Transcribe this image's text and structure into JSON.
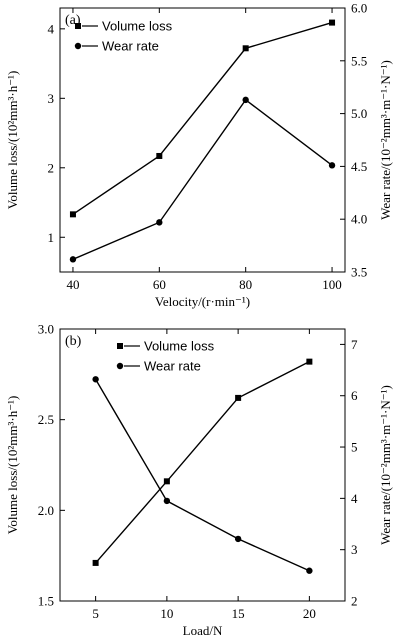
{
  "chart_data": [
    {
      "type": "line",
      "panel_label": "(a)",
      "xlabel": "Velocity/(r·min⁻¹)",
      "ylabel_left": "Volume loss/(10²mm³·h⁻¹)",
      "ylabel_right": "Wear rate/(10⁻²mm³·m⁻¹·N⁻¹)",
      "x": [
        40,
        60,
        80,
        100
      ],
      "xticks": [
        "40",
        "60",
        "80",
        "100"
      ],
      "xlim": [
        37,
        103
      ],
      "ylim_left": [
        0.5,
        4.3
      ],
      "yticks_left": [
        "1",
        "2",
        "3",
        "4"
      ],
      "ylim_right": [
        3.5,
        6.0
      ],
      "yticks_right": [
        "3.5",
        "4.0",
        "4.5",
        "5.0",
        "5.5",
        "6.0"
      ],
      "legend_position": "top-left",
      "series": [
        {
          "name": "Volume loss",
          "marker": "square",
          "axis": "left",
          "values": [
            1.33,
            2.17,
            3.72,
            4.09
          ]
        },
        {
          "name": "Wear rate",
          "marker": "circle",
          "axis": "right",
          "values": [
            3.62,
            3.97,
            5.13,
            4.51
          ]
        }
      ]
    },
    {
      "type": "line",
      "panel_label": "(b)",
      "xlabel": "Load/N",
      "ylabel_left": "Volume loss/(10²mm³·h⁻¹)",
      "ylabel_right": "Wear rate/(10⁻²mm³·m⁻¹·N⁻¹)",
      "x": [
        5,
        10,
        15,
        20
      ],
      "xticks": [
        "5",
        "10",
        "15",
        "20"
      ],
      "xlim": [
        2.5,
        22.5
      ],
      "ylim_left": [
        1.5,
        3.0
      ],
      "yticks_left": [
        "1.5",
        "2.0",
        "2.5",
        "3.0"
      ],
      "ylim_right": [
        2,
        7.3
      ],
      "yticks_right": [
        "2",
        "3",
        "4",
        "5",
        "6",
        "7"
      ],
      "legend_position": "top-center",
      "series": [
        {
          "name": "Volume loss",
          "marker": "square",
          "axis": "left",
          "values": [
            1.71,
            2.16,
            2.62,
            2.82
          ]
        },
        {
          "name": "Wear rate",
          "marker": "circle",
          "axis": "right",
          "values": [
            6.32,
            3.95,
            3.21,
            2.59
          ]
        }
      ]
    }
  ]
}
